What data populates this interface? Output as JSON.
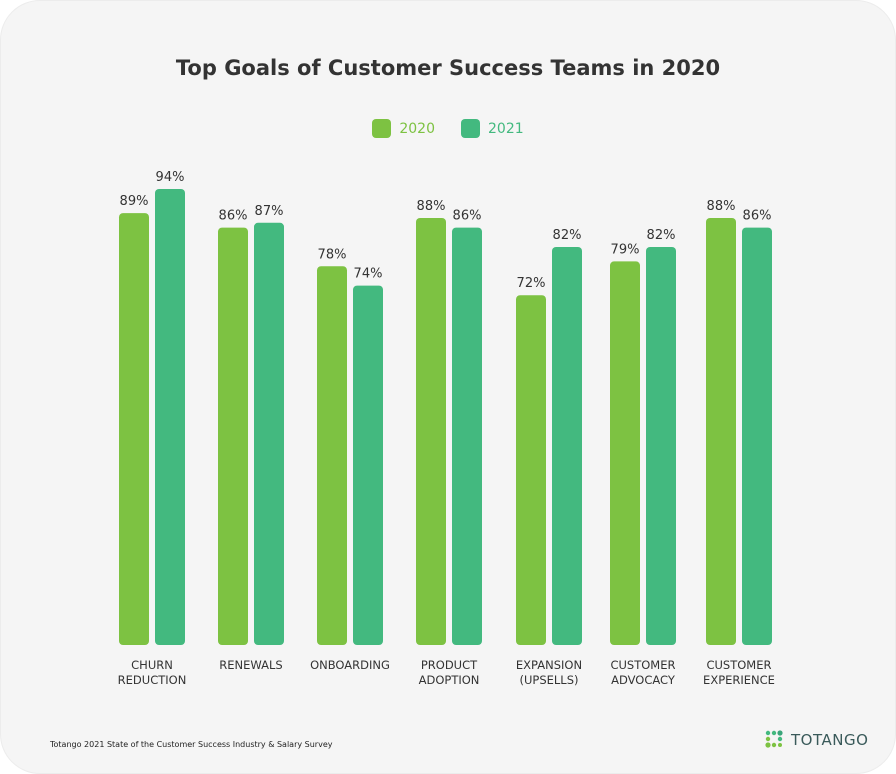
{
  "chart_data": {
    "type": "bar",
    "title": "Top Goals of Customer Success Teams in 2020",
    "categories": [
      [
        "CHURN",
        "REDUCTION"
      ],
      [
        "RENEWALS"
      ],
      [
        "ONBOARDING"
      ],
      [
        "PRODUCT",
        "ADOPTION"
      ],
      [
        "EXPANSION",
        "(UPSELLS)"
      ],
      [
        "CUSTOMER",
        "ADVOCACY"
      ],
      [
        "CUSTOMER",
        "EXPERIENCE"
      ]
    ],
    "series": [
      {
        "name": "2020",
        "color": "#7dc242",
        "values": [
          89,
          86,
          78,
          88,
          72,
          79,
          88
        ]
      },
      {
        "name": "2021",
        "color": "#43b97f",
        "values": [
          94,
          87,
          74,
          86,
          82,
          82,
          86
        ]
      }
    ],
    "value_format": "percent",
    "ylim": [
      0,
      100
    ],
    "grid": false,
    "legend_placement": "top-center"
  },
  "footer": {
    "source": "Totango 2021 State of the Customer Success Industry & Salary Survey"
  },
  "logo": {
    "text": "TOTANGO"
  }
}
